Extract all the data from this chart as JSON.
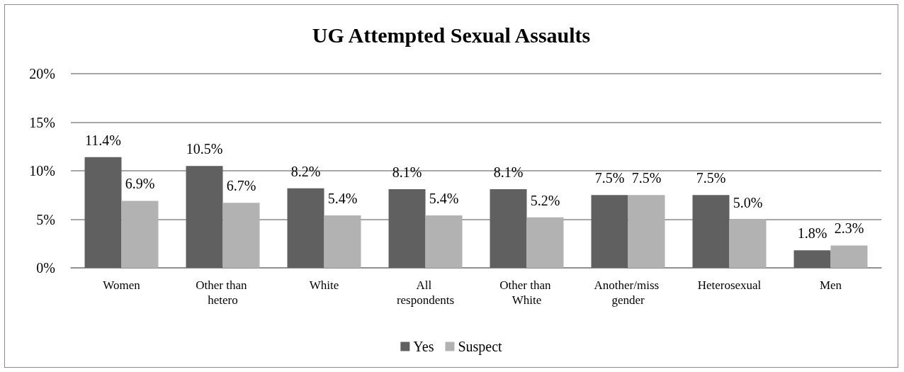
{
  "chart_data": {
    "type": "bar",
    "title": "UG Attempted Sexual Assaults",
    "categories": [
      "Women",
      "Other than hetero",
      "White",
      "All respondents",
      "Other than White",
      "Another/miss gender",
      "Heterosexual",
      "Men"
    ],
    "series": [
      {
        "name": "Yes",
        "color": "#606060",
        "values": [
          11.4,
          10.5,
          8.2,
          8.1,
          8.1,
          7.5,
          7.5,
          1.8
        ],
        "value_labels": [
          "11.4%",
          "10.5%",
          "8.2%",
          "8.1%",
          "8.1%",
          "7.5%",
          "7.5%",
          "1.8%"
        ]
      },
      {
        "name": "Suspect",
        "color": "#b2b2b2",
        "values": [
          6.9,
          6.7,
          5.4,
          5.4,
          5.2,
          7.5,
          5.0,
          2.3
        ],
        "value_labels": [
          "6.9%",
          "6.7%",
          "5.4%",
          "5.4%",
          "5.2%",
          "7.5%",
          "5.0%",
          "2.3%"
        ]
      }
    ],
    "ylim": [
      0,
      20
    ],
    "yticks": [
      {
        "value": 0,
        "label": "0%"
      },
      {
        "value": 5,
        "label": "5%"
      },
      {
        "value": 10,
        "label": "10%"
      },
      {
        "value": 15,
        "label": "15%"
      },
      {
        "value": 20,
        "label": "20%"
      }
    ],
    "grid": "y",
    "legend": "bottom"
  }
}
